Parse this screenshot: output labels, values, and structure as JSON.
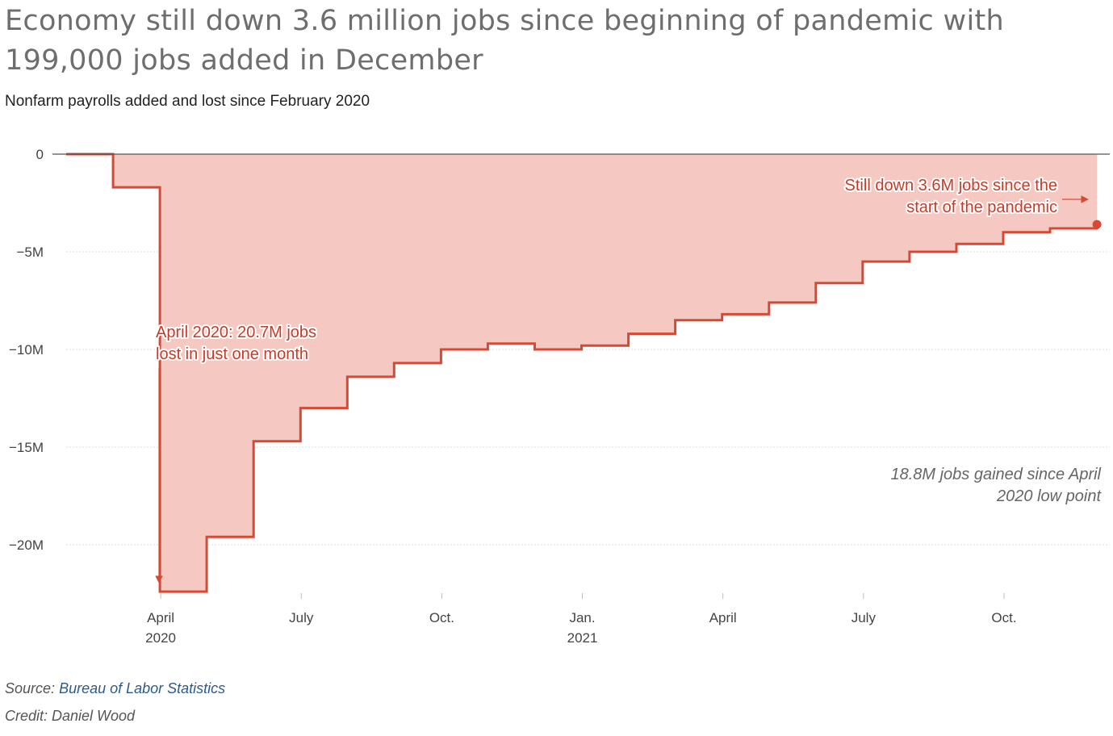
{
  "header": {
    "title": "Economy still down 3.6 million jobs since beginning of pandemic with 199,000 jobs added in December",
    "subtitle": "Nonfarm payrolls added and lost since February 2020"
  },
  "footer": {
    "source_prefix": "Source:",
    "source_name": "Bureau of Labor Statistics",
    "credit": "Credit: Daniel Wood"
  },
  "colors": {
    "line": "#d64a35",
    "area": "#f5c5bf",
    "zero_line": "#555555",
    "grid": "#dddddd",
    "annotation_text": "#c93a26",
    "note_text": "#666666"
  },
  "chart_data": {
    "type": "area",
    "step": true,
    "x": [
      "2020-02",
      "2020-03",
      "2020-04",
      "2020-05",
      "2020-06",
      "2020-07",
      "2020-08",
      "2020-09",
      "2020-10",
      "2020-11",
      "2020-12",
      "2021-01",
      "2021-02",
      "2021-03",
      "2021-04",
      "2021-05",
      "2021-06",
      "2021-07",
      "2021-08",
      "2021-09",
      "2021-10",
      "2021-11",
      "2021-12"
    ],
    "values": [
      0,
      -1.7,
      -22.4,
      -19.6,
      -14.7,
      -13.0,
      -11.4,
      -10.7,
      -10.0,
      -9.7,
      -10.0,
      -9.8,
      -9.2,
      -8.5,
      -8.2,
      -7.6,
      -6.6,
      -5.5,
      -5.0,
      -4.6,
      -4.0,
      -3.8,
      -3.6
    ],
    "value_unit": "millions of jobs",
    "ylim": [
      -22.4,
      0
    ],
    "y_ticks": [
      {
        "value": 0,
        "label": "0"
      },
      {
        "value": -5,
        "label": "−5M"
      },
      {
        "value": -10,
        "label": "−10M"
      },
      {
        "value": -15,
        "label": "−15M"
      },
      {
        "value": -20,
        "label": "−20M"
      }
    ],
    "x_ticks": [
      {
        "date": "2020-04",
        "label": "April",
        "sublabel": "2020"
      },
      {
        "date": "2020-07",
        "label": "July",
        "sublabel": ""
      },
      {
        "date": "2020-10",
        "label": "Oct.",
        "sublabel": ""
      },
      {
        "date": "2021-01",
        "label": "Jan.",
        "sublabel": "2021"
      },
      {
        "date": "2021-04",
        "label": "April",
        "sublabel": ""
      },
      {
        "date": "2021-07",
        "label": "July",
        "sublabel": ""
      },
      {
        "date": "2021-10",
        "label": "Oct.",
        "sublabel": ""
      }
    ],
    "annotations": [
      {
        "id": "low",
        "lines": [
          "April 2020: 20.7M jobs",
          "lost in just one month"
        ]
      },
      {
        "id": "current",
        "lines": [
          "Still down 3.6M jobs since the",
          "start of the pandemic"
        ]
      },
      {
        "id": "gain",
        "lines": [
          "18.8M jobs gained since April",
          "2020 low point"
        ]
      }
    ],
    "grid": true,
    "legend": "none"
  }
}
